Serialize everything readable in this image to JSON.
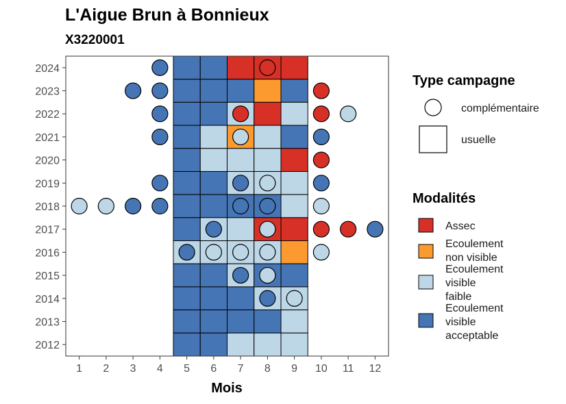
{
  "chart_data": {
    "type": "heatmap",
    "title": "L'Aigue Brun à Bonnieux",
    "subtitle": "X3220001",
    "xlabel": "Mois",
    "ylabel": "",
    "x_ticks": [
      "1",
      "2",
      "3",
      "4",
      "5",
      "6",
      "7",
      "8",
      "9",
      "10",
      "11",
      "12"
    ],
    "y_ticks": [
      "2012",
      "2013",
      "2014",
      "2015",
      "2016",
      "2017",
      "2018",
      "2019",
      "2020",
      "2021",
      "2022",
      "2023",
      "2024"
    ],
    "xlim": [
      0.5,
      12.5
    ],
    "ylim": [
      2011.5,
      2024.5
    ],
    "grid": false,
    "legend_position": "right",
    "legend_type": {
      "title": "Type campagne",
      "items": [
        {
          "key": "complementaire",
          "label": "complémentaire",
          "shape": "circle"
        },
        {
          "key": "usuelle",
          "label": "usuelle",
          "shape": "square"
        }
      ]
    },
    "legend_modalites": {
      "title": "Modalités",
      "items": [
        {
          "key": "assec",
          "lines": [
            "Assec"
          ],
          "color": "#d73027"
        },
        {
          "key": "nonvisible",
          "lines": [
            "Ecoulement",
            "non visible"
          ],
          "color": "#fd9a2f"
        },
        {
          "key": "faible",
          "lines": [
            "Ecoulement",
            "visible",
            "faible"
          ],
          "color": "#bdd7e7"
        },
        {
          "key": "acceptable",
          "lines": [
            "Ecoulement",
            "visible",
            "acceptable"
          ],
          "color": "#4575b4"
        }
      ]
    },
    "tiles": [
      {
        "year": 2024,
        "month": 5,
        "modalite": "acceptable"
      },
      {
        "year": 2024,
        "month": 6,
        "modalite": "acceptable"
      },
      {
        "year": 2024,
        "month": 7,
        "modalite": "assec"
      },
      {
        "year": 2024,
        "month": 8,
        "modalite": "assec"
      },
      {
        "year": 2024,
        "month": 9,
        "modalite": "assec"
      },
      {
        "year": 2023,
        "month": 5,
        "modalite": "acceptable"
      },
      {
        "year": 2023,
        "month": 6,
        "modalite": "acceptable"
      },
      {
        "year": 2023,
        "month": 7,
        "modalite": "acceptable"
      },
      {
        "year": 2023,
        "month": 8,
        "modalite": "nonvisible"
      },
      {
        "year": 2023,
        "month": 9,
        "modalite": "acceptable"
      },
      {
        "year": 2022,
        "month": 5,
        "modalite": "acceptable"
      },
      {
        "year": 2022,
        "month": 6,
        "modalite": "acceptable"
      },
      {
        "year": 2022,
        "month": 7,
        "modalite": "faible"
      },
      {
        "year": 2022,
        "month": 8,
        "modalite": "assec"
      },
      {
        "year": 2022,
        "month": 9,
        "modalite": "faible"
      },
      {
        "year": 2021,
        "month": 5,
        "modalite": "acceptable"
      },
      {
        "year": 2021,
        "month": 6,
        "modalite": "faible"
      },
      {
        "year": 2021,
        "month": 7,
        "modalite": "nonvisible"
      },
      {
        "year": 2021,
        "month": 8,
        "modalite": "faible"
      },
      {
        "year": 2021,
        "month": 9,
        "modalite": "acceptable"
      },
      {
        "year": 2020,
        "month": 5,
        "modalite": "acceptable"
      },
      {
        "year": 2020,
        "month": 6,
        "modalite": "faible"
      },
      {
        "year": 2020,
        "month": 7,
        "modalite": "faible"
      },
      {
        "year": 2020,
        "month": 8,
        "modalite": "faible"
      },
      {
        "year": 2020,
        "month": 9,
        "modalite": "assec"
      },
      {
        "year": 2019,
        "month": 5,
        "modalite": "acceptable"
      },
      {
        "year": 2019,
        "month": 6,
        "modalite": "acceptable"
      },
      {
        "year": 2019,
        "month": 7,
        "modalite": "faible"
      },
      {
        "year": 2019,
        "month": 8,
        "modalite": "faible"
      },
      {
        "year": 2019,
        "month": 9,
        "modalite": "faible"
      },
      {
        "year": 2018,
        "month": 5,
        "modalite": "acceptable"
      },
      {
        "year": 2018,
        "month": 6,
        "modalite": "acceptable"
      },
      {
        "year": 2018,
        "month": 7,
        "modalite": "acceptable"
      },
      {
        "year": 2018,
        "month": 8,
        "modalite": "acceptable"
      },
      {
        "year": 2018,
        "month": 9,
        "modalite": "faible"
      },
      {
        "year": 2017,
        "month": 5,
        "modalite": "acceptable"
      },
      {
        "year": 2017,
        "month": 6,
        "modalite": "faible"
      },
      {
        "year": 2017,
        "month": 7,
        "modalite": "faible"
      },
      {
        "year": 2017,
        "month": 8,
        "modalite": "assec"
      },
      {
        "year": 2017,
        "month": 9,
        "modalite": "assec"
      },
      {
        "year": 2016,
        "month": 5,
        "modalite": "faible"
      },
      {
        "year": 2016,
        "month": 6,
        "modalite": "faible"
      },
      {
        "year": 2016,
        "month": 7,
        "modalite": "faible"
      },
      {
        "year": 2016,
        "month": 8,
        "modalite": "faible"
      },
      {
        "year": 2016,
        "month": 9,
        "modalite": "nonvisible"
      },
      {
        "year": 2015,
        "month": 5,
        "modalite": "acceptable"
      },
      {
        "year": 2015,
        "month": 6,
        "modalite": "acceptable"
      },
      {
        "year": 2015,
        "month": 7,
        "modalite": "faible"
      },
      {
        "year": 2015,
        "month": 8,
        "modalite": "acceptable"
      },
      {
        "year": 2015,
        "month": 9,
        "modalite": "acceptable"
      },
      {
        "year": 2014,
        "month": 5,
        "modalite": "acceptable"
      },
      {
        "year": 2014,
        "month": 6,
        "modalite": "acceptable"
      },
      {
        "year": 2014,
        "month": 7,
        "modalite": "acceptable"
      },
      {
        "year": 2014,
        "month": 8,
        "modalite": "faible"
      },
      {
        "year": 2014,
        "month": 9,
        "modalite": "faible"
      },
      {
        "year": 2013,
        "month": 5,
        "modalite": "acceptable"
      },
      {
        "year": 2013,
        "month": 6,
        "modalite": "acceptable"
      },
      {
        "year": 2013,
        "month": 7,
        "modalite": "acceptable"
      },
      {
        "year": 2013,
        "month": 8,
        "modalite": "acceptable"
      },
      {
        "year": 2013,
        "month": 9,
        "modalite": "faible"
      },
      {
        "year": 2012,
        "month": 5,
        "modalite": "acceptable"
      },
      {
        "year": 2012,
        "month": 6,
        "modalite": "acceptable"
      },
      {
        "year": 2012,
        "month": 7,
        "modalite": "faible"
      },
      {
        "year": 2012,
        "month": 8,
        "modalite": "faible"
      },
      {
        "year": 2012,
        "month": 9,
        "modalite": "faible"
      }
    ],
    "points": [
      {
        "year": 2024,
        "month": 4,
        "modalite": "acceptable"
      },
      {
        "year": 2024,
        "month": 8,
        "modalite": "assec"
      },
      {
        "year": 2023,
        "month": 3,
        "modalite": "acceptable"
      },
      {
        "year": 2023,
        "month": 4,
        "modalite": "acceptable"
      },
      {
        "year": 2023,
        "month": 10,
        "modalite": "assec"
      },
      {
        "year": 2022,
        "month": 4,
        "modalite": "acceptable"
      },
      {
        "year": 2022,
        "month": 7,
        "modalite": "assec"
      },
      {
        "year": 2022,
        "month": 10,
        "modalite": "assec"
      },
      {
        "year": 2022,
        "month": 11,
        "modalite": "faible"
      },
      {
        "year": 2021,
        "month": 4,
        "modalite": "acceptable"
      },
      {
        "year": 2021,
        "month": 7,
        "modalite": "faible"
      },
      {
        "year": 2021,
        "month": 10,
        "modalite": "acceptable"
      },
      {
        "year": 2020,
        "month": 10,
        "modalite": "assec"
      },
      {
        "year": 2019,
        "month": 4,
        "modalite": "acceptable"
      },
      {
        "year": 2019,
        "month": 7,
        "modalite": "acceptable"
      },
      {
        "year": 2019,
        "month": 8,
        "modalite": "faible"
      },
      {
        "year": 2019,
        "month": 10,
        "modalite": "acceptable"
      },
      {
        "year": 2018,
        "month": 1,
        "modalite": "faible"
      },
      {
        "year": 2018,
        "month": 2,
        "modalite": "faible"
      },
      {
        "year": 2018,
        "month": 3,
        "modalite": "acceptable"
      },
      {
        "year": 2018,
        "month": 4,
        "modalite": "acceptable"
      },
      {
        "year": 2018,
        "month": 7,
        "modalite": "acceptable"
      },
      {
        "year": 2018,
        "month": 8,
        "modalite": "acceptable"
      },
      {
        "year": 2018,
        "month": 10,
        "modalite": "faible"
      },
      {
        "year": 2017,
        "month": 6,
        "modalite": "acceptable"
      },
      {
        "year": 2017,
        "month": 8,
        "modalite": "faible"
      },
      {
        "year": 2017,
        "month": 10,
        "modalite": "assec"
      },
      {
        "year": 2017,
        "month": 11,
        "modalite": "assec"
      },
      {
        "year": 2017,
        "month": 12,
        "modalite": "acceptable"
      },
      {
        "year": 2016,
        "month": 5,
        "modalite": "acceptable"
      },
      {
        "year": 2016,
        "month": 6,
        "modalite": "faible"
      },
      {
        "year": 2016,
        "month": 7,
        "modalite": "faible"
      },
      {
        "year": 2016,
        "month": 8,
        "modalite": "faible"
      },
      {
        "year": 2016,
        "month": 10,
        "modalite": "faible"
      },
      {
        "year": 2015,
        "month": 7,
        "modalite": "acceptable"
      },
      {
        "year": 2015,
        "month": 8,
        "modalite": "faible"
      },
      {
        "year": 2014,
        "month": 8,
        "modalite": "acceptable"
      },
      {
        "year": 2014,
        "month": 9,
        "modalite": "faible"
      }
    ]
  }
}
